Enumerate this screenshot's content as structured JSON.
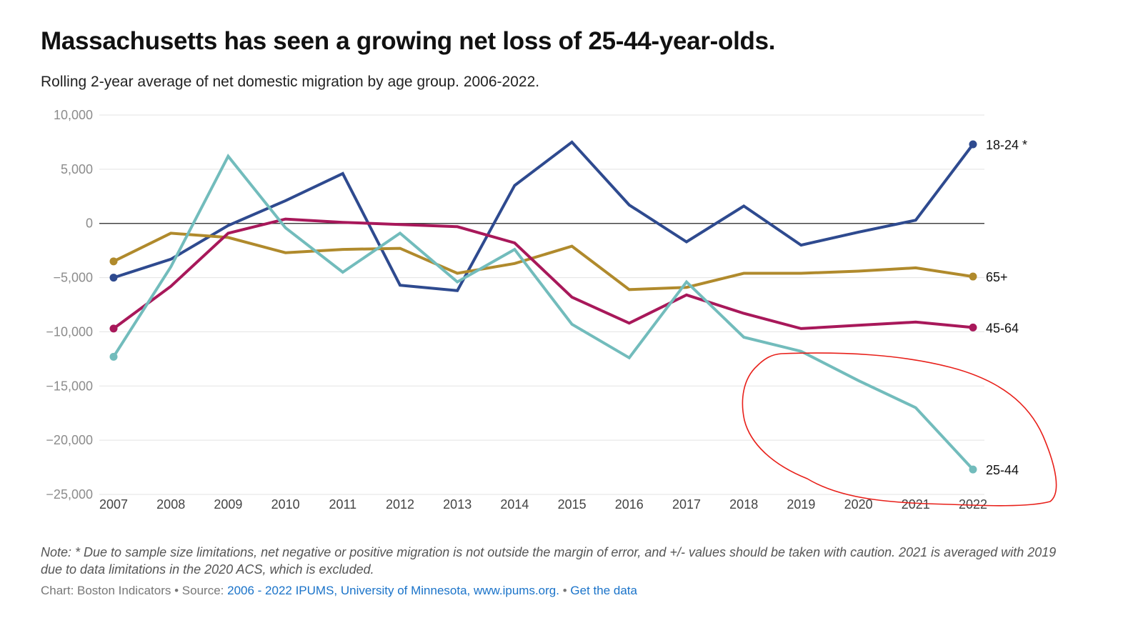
{
  "title": "Massachusetts has seen a growing net loss of 25-44-year-olds.",
  "subtitle": "Rolling 2-year average of net domestic migration by age group. 2006-2022.",
  "note": "Note: * Due to sample size limitations, net negative or positive migration is not outside the margin of error, and +/- values should be taken with caution. 2021 is averaged with 2019 due to data limitations in the 2020 ACS, which is excluded.",
  "footer": {
    "chart_credit": "Chart: Boston Indicators",
    "source_label": "• Source:",
    "source_link": "2006 - 2022 IPUMS, University of Minnesota, www.ipums.org.",
    "separator": "•",
    "data_link": "Get the data"
  },
  "chart_data": {
    "type": "line",
    "x": [
      2007,
      2008,
      2009,
      2010,
      2011,
      2012,
      2013,
      2014,
      2015,
      2016,
      2017,
      2018,
      2019,
      2020,
      2021,
      2022
    ],
    "ylim": [
      -25000,
      10000
    ],
    "yticks": [
      10000,
      5000,
      0,
      -5000,
      -10000,
      -15000,
      -20000,
      -25000
    ],
    "ytick_labels": [
      "10,000",
      "5,000",
      "0",
      "−5,000",
      "−10,000",
      "−15,000",
      "−20,000",
      "−25,000"
    ],
    "grid": true,
    "zero_line": true,
    "series": [
      {
        "name": "18-24 *",
        "color": "#2e4a8f",
        "values": [
          -5000,
          -3300,
          -200,
          2100,
          4600,
          -5700,
          -6200,
          3500,
          7500,
          1700,
          -1700,
          1600,
          -2000,
          -800,
          300,
          7300
        ]
      },
      {
        "name": "65+",
        "color": "#b08a2c",
        "values": [
          -3500,
          -900,
          -1300,
          -2700,
          -2400,
          -2300,
          -4600,
          -3700,
          -2100,
          -6100,
          -5900,
          -4600,
          -4600,
          -4400,
          -4100,
          -4900
        ]
      },
      {
        "name": "45-64",
        "color": "#a8185a",
        "values": [
          -9700,
          -5800,
          -900,
          400,
          100,
          -100,
          -300,
          -1800,
          -6800,
          -9200,
          -6600,
          -8300,
          -9700,
          -9400,
          -9100,
          -9600
        ]
      },
      {
        "name": "25-44",
        "color": "#72bcbc",
        "values": [
          -12300,
          -4000,
          6200,
          -400,
          -4500,
          -900,
          -5400,
          -2400,
          -9300,
          -12400,
          -5400,
          -10500,
          -11800,
          -14500,
          -17000,
          -22700
        ]
      }
    ],
    "annotation": {
      "type": "hand-drawn-ellipse",
      "color": "#e8201a"
    }
  }
}
